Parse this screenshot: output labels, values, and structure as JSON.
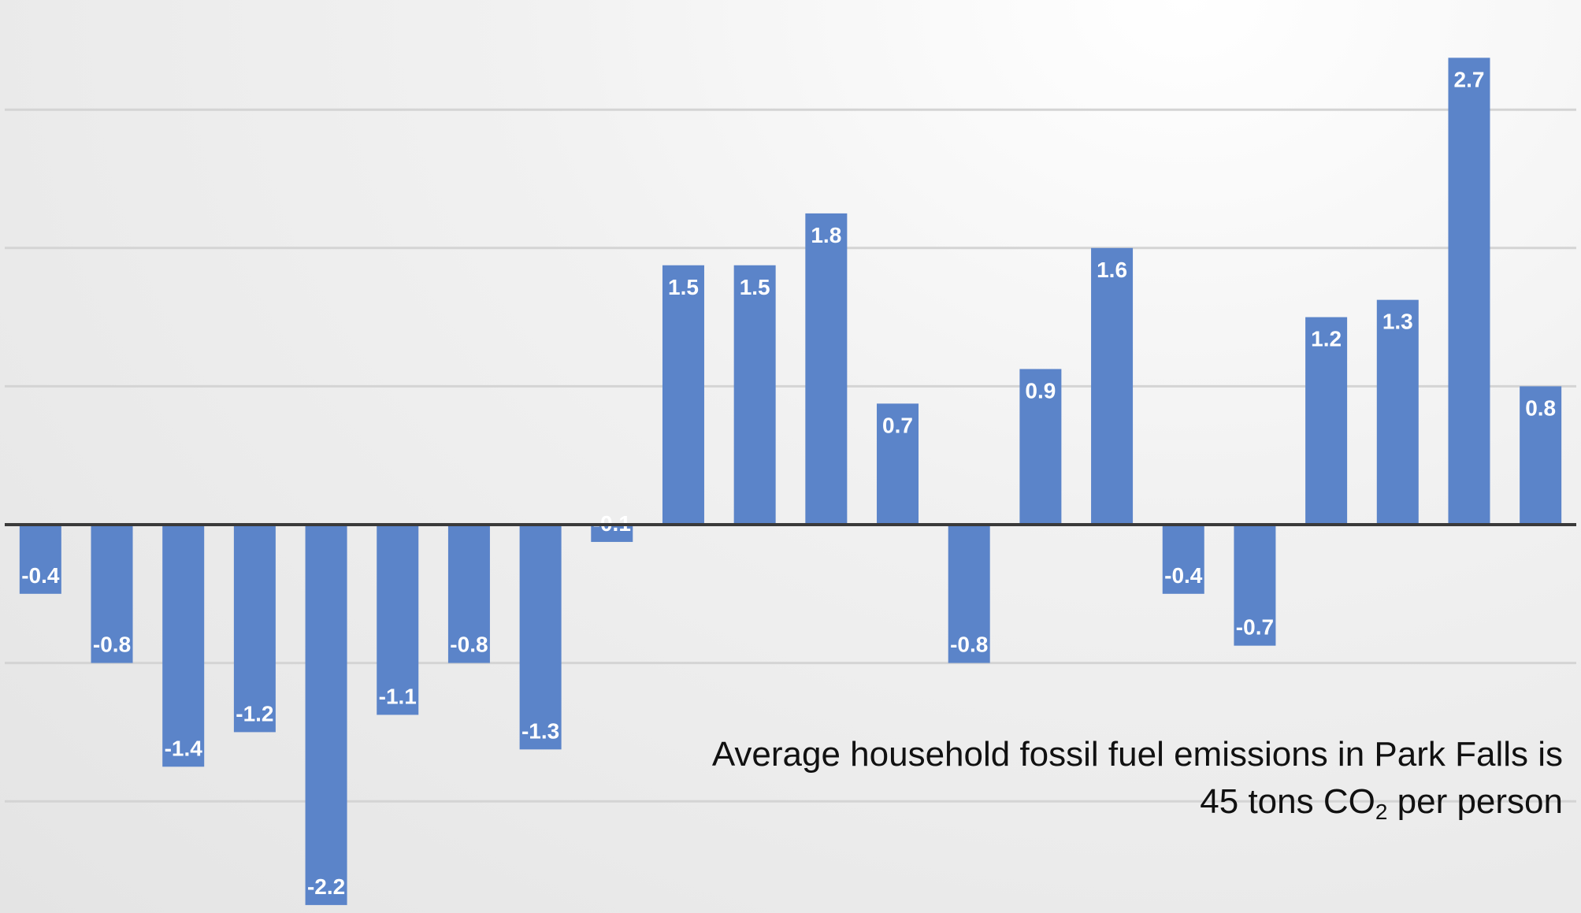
{
  "chart_data": {
    "type": "bar",
    "values": [
      -0.4,
      -0.8,
      -1.4,
      -1.2,
      -2.2,
      -1.1,
      -0.8,
      -1.3,
      -0.1,
      1.5,
      1.5,
      1.8,
      0.7,
      -0.8,
      0.9,
      1.6,
      -0.4,
      -0.7,
      1.2,
      1.3,
      2.7,
      0.8
    ],
    "labels": [
      "-0.4",
      "-0.8",
      "-1.4",
      "-1.2",
      "-2.2",
      "-1.1",
      "-0.8",
      "-1.3",
      "-0.1",
      "1.5",
      "1.5",
      "1.8",
      "0.7",
      "-0.8",
      "0.9",
      "1.6",
      "-0.4",
      "-0.7",
      "1.2",
      "1.3",
      "2.7",
      "0.8"
    ],
    "ylim": [
      -2.2,
      3.0
    ],
    "grid": true,
    "bar_color": "#5b84c9",
    "zero_line_color": "#3a3a3a",
    "grid_color": "#d4d4d4"
  },
  "annotation": {
    "line1": "Average household fossil fuel emissions in Park Falls is",
    "line2_prefix": "45 tons CO",
    "line2_sub": "2",
    "line2_suffix": " per person"
  }
}
